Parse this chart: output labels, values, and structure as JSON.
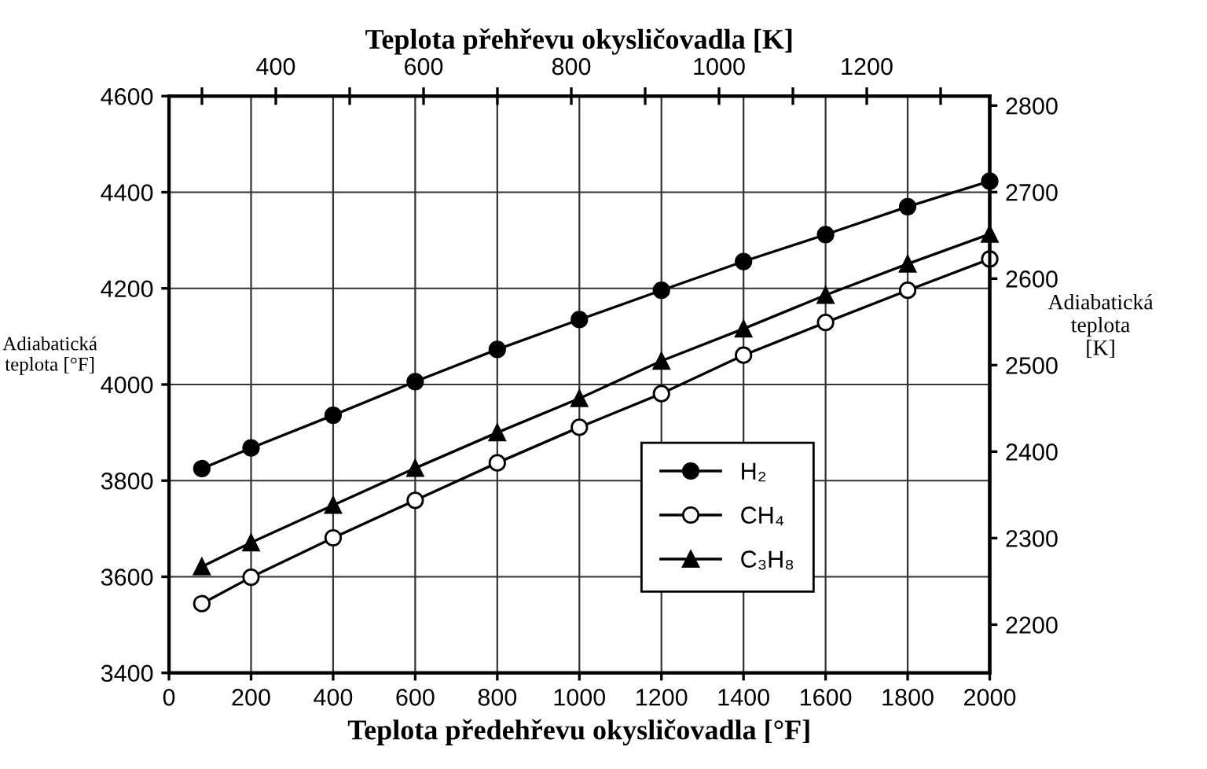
{
  "chart_data": {
    "type": "line",
    "xlabel": "Teplota předehřevu okysličovadla [°F]",
    "ylabel": "Adiabatická\nteplota [°F]",
    "y2label": "Adiabatická\nteplota\n[K]",
    "x2label": "Teplota přehřevu okysličovadla [K]",
    "x": [
      80,
      200,
      400,
      600,
      800,
      1000,
      1200,
      1400,
      1600,
      1800,
      2000
    ],
    "series": [
      {
        "name": "H₂",
        "color": "#000000",
        "marker": "circle",
        "values": [
          3825,
          3868,
          3936,
          4006,
          4073,
          4135,
          4196,
          4256,
          4312,
          4370,
          4423
        ]
      },
      {
        "name": "CH₄",
        "color": "#ffffff",
        "marker": "circle",
        "values": [
          3544,
          3599,
          3681,
          3759,
          3837,
          3911,
          3981,
          4061,
          4129,
          4196,
          4261
        ]
      },
      {
        "name": "C₃H₈",
        "color": "#000000",
        "marker": "triangle",
        "values": [
          3621,
          3671,
          3749,
          3826,
          3900,
          3971,
          4049,
          4116,
          4186,
          4251,
          4313
        ]
      }
    ],
    "xlim": [
      0,
      2000
    ],
    "xticks": [
      0,
      200,
      400,
      600,
      800,
      1000,
      1200,
      1400,
      1600,
      1800,
      2000
    ],
    "ylim": [
      3400,
      4600
    ],
    "yticks": [
      3400,
      3600,
      3800,
      4000,
      4200,
      4400,
      4600
    ],
    "x2lim": [
      255.37,
      1366.48
    ],
    "x2ticks": [
      {
        "value": 300,
        "label": null
      },
      400,
      {
        "value": 500,
        "label": null
      },
      600,
      {
        "value": 700,
        "label": null
      },
      800,
      {
        "value": 900,
        "label": null
      },
      1000,
      {
        "value": 1100,
        "label": null
      },
      1200,
      {
        "value": 1300,
        "label": null
      }
    ],
    "y2lim": [
      2144.26,
      2810.93
    ],
    "y2ticks": [
      2200,
      2300,
      2400,
      2500,
      2600,
      2700,
      2800
    ],
    "grid": true,
    "legend": "bottom right",
    "line_style": "solid"
  }
}
